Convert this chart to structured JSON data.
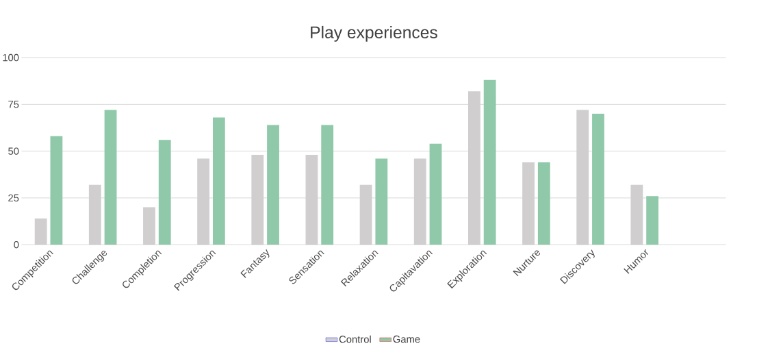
{
  "chart_data": {
    "type": "bar",
    "title": "Play experiences",
    "categories": [
      "Competition",
      "Challenge",
      "Completion",
      "Progression",
      "Fantasy",
      "Sensation",
      "Relaxation",
      "Capitavation",
      "Exploration",
      "Nurture",
      "Discovery",
      "Humor",
      null
    ],
    "series": [
      {
        "name": "Control",
        "color": "#d0cece",
        "values": [
          14,
          32,
          20,
          46,
          48,
          48,
          32,
          46,
          82,
          44,
          72,
          32,
          null
        ]
      },
      {
        "name": "Game",
        "color": "#8fc9a9",
        "values": [
          58,
          72,
          56,
          68,
          64,
          64,
          46,
          54,
          88,
          44,
          70,
          26,
          null
        ]
      }
    ],
    "ylim": [
      0,
      100
    ],
    "yticks": [
      0,
      25,
      50,
      75,
      100
    ],
    "grid": "y",
    "legend": "bottom"
  }
}
